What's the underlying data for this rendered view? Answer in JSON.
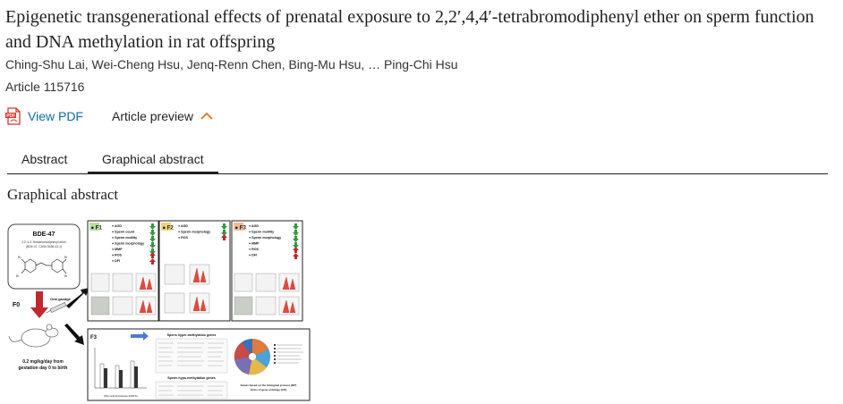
{
  "article": {
    "title": "Epigenetic transgenerational effects of prenatal exposure to 2,2′,4,4′-tetrabromodiphenyl ether on sperm function and DNA methylation in rat offspring",
    "authors": "Ching-Shu Lai, Wei-Cheng Hsu, Jenq-Renn Chen, Bing-Mu Hsu, … Ping-Chi Hsu",
    "article_number": "Article 115716"
  },
  "actions": {
    "view_pdf": "View PDF",
    "article_preview": "Article preview"
  },
  "tabs": [
    {
      "label": "Abstract",
      "active": false
    },
    {
      "label": "Graphical abstract",
      "active": true
    }
  ],
  "section_heading": "Graphical abstract",
  "figure": {
    "compound_name": "BDE-47",
    "compound_desc": "2,2′,4,4′-Tetrabromodiphenyl ether",
    "compound_cas": "(BDE-47, CAS# 5436-43-1)",
    "f0_label": "F0",
    "oral_gavage": "Oral gavage",
    "dose_line1": "0.2 mg/kg/day from",
    "dose_line2": "gestation day 0 to birth",
    "panels": [
      {
        "label": "F1",
        "items": [
          "AGD",
          "Sperm count",
          "Sperm motility",
          "Sperm morphology",
          "MMP",
          "ROS",
          "DFI"
        ]
      },
      {
        "label": "F2",
        "items": [
          "AGD",
          "Sperm morphology",
          "ROS"
        ]
      },
      {
        "label": "F3",
        "items": [
          "AGD",
          "Sperm motility",
          "Sperm morphology",
          "MMP",
          "ROS",
          "DFI"
        ]
      }
    ],
    "f3_label": "F3",
    "hyper_title": "Sperm hyper-methylation genes",
    "hypo_title": "Sperm hypo-methylation genes",
    "genes_caption_1": "Genes based on the biological process (BP)",
    "genes_caption_2": "terms of gene ontology (GO)",
    "bar_xlabel": "DNA methyltransferase (DNMTs)"
  },
  "colors": {
    "link": "#0c6da6",
    "pdf_red": "#d8352a",
    "chevron": "#e9711c",
    "f1_bg": "#b9dca0",
    "f2_bg": "#f2d27a",
    "f3_bg": "#f4b996",
    "arrow_red": "#c0282d"
  }
}
